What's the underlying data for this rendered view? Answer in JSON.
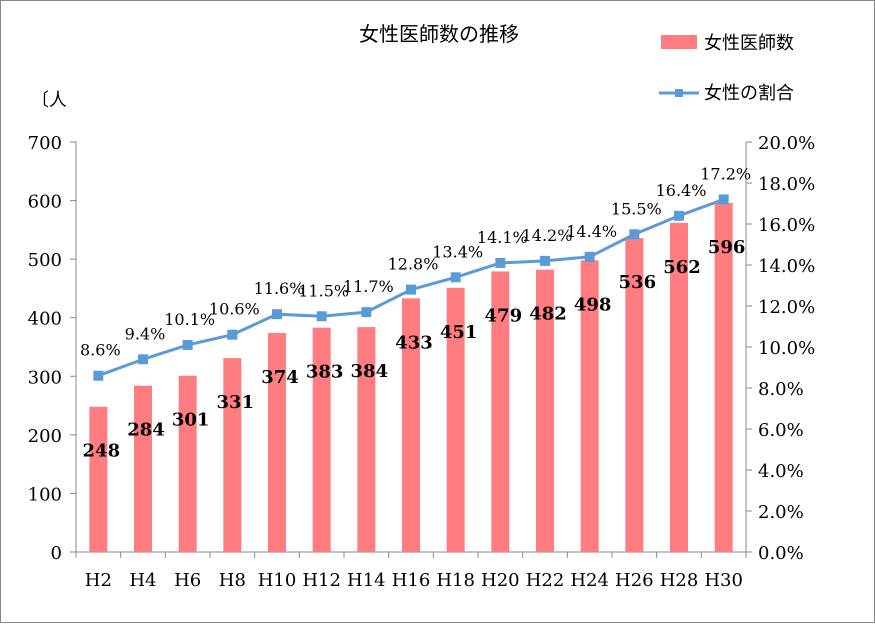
{
  "chart_data": {
    "type": "bar+line",
    "title": "女性医師数の推移",
    "ylabel": "〔人",
    "categories": [
      "H2",
      "H4",
      "H6",
      "H8",
      "H10",
      "H12",
      "H14",
      "H16",
      "H18",
      "H20",
      "H22",
      "H24",
      "H26",
      "H28",
      "H30"
    ],
    "series": [
      {
        "name": "女性医師数",
        "type": "bar",
        "axis": "left",
        "color": "#ff7c80",
        "values": [
          248,
          284,
          301,
          331,
          374,
          383,
          384,
          433,
          451,
          479,
          482,
          498,
          536,
          562,
          596
        ]
      },
      {
        "name": "女性の割合",
        "type": "line",
        "axis": "right",
        "color": "#5b9bd5",
        "values": [
          8.6,
          9.4,
          10.1,
          10.6,
          11.6,
          11.5,
          11.7,
          12.8,
          13.4,
          14.1,
          14.2,
          14.4,
          15.5,
          16.4,
          17.2
        ]
      }
    ],
    "ylim": [
      0,
      700
    ],
    "yticks": [
      "0",
      "100",
      "200",
      "300",
      "400",
      "500",
      "600",
      "700"
    ],
    "y2lim": [
      0,
      20
    ],
    "y2ticks": [
      "0.0%",
      "2.0%",
      "4.0%",
      "6.0%",
      "8.0%",
      "10.0%",
      "12.0%",
      "14.0%",
      "16.0%",
      "18.0%",
      "20.0%"
    ],
    "legend": "top-right",
    "grid": false
  }
}
